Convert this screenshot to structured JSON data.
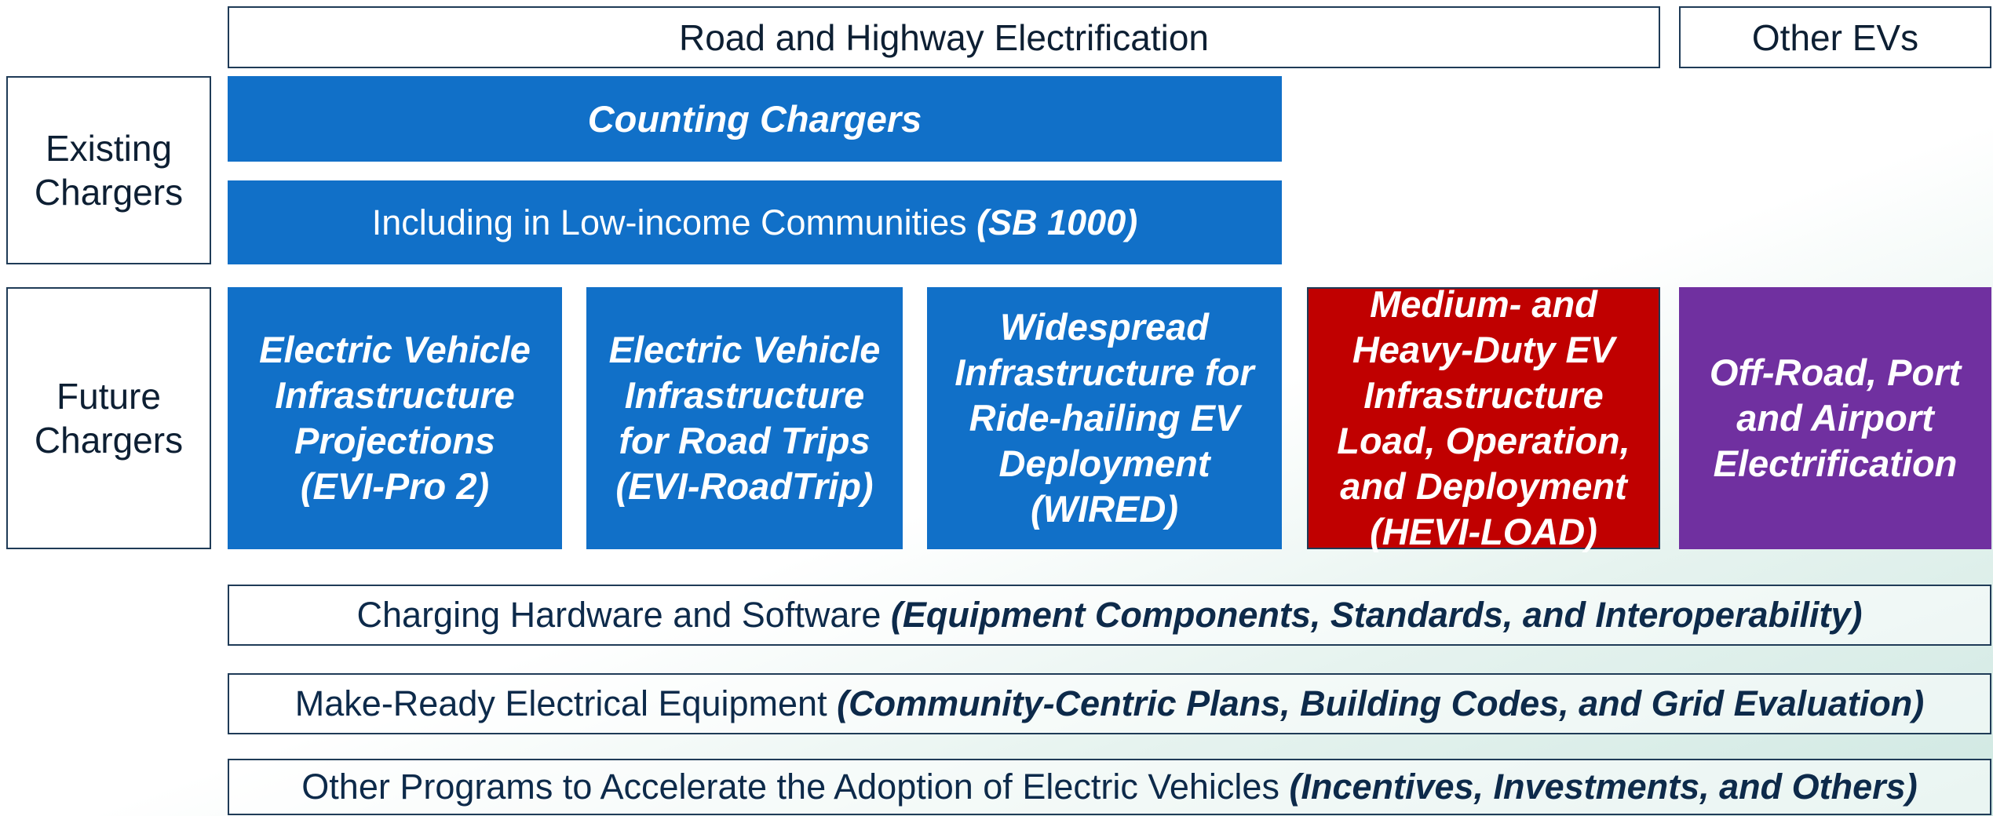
{
  "header": {
    "left": "Road and Highway Electrification",
    "right": "Other EVs"
  },
  "rows": {
    "existing": {
      "label": [
        "Existing",
        "Chargers"
      ]
    },
    "future": {
      "label": [
        "Future",
        "Chargers"
      ]
    }
  },
  "existing_boxes": {
    "counting": "Counting Chargers",
    "low_income": {
      "text": "Including in Low-income Communities",
      "emphasis": "(SB 1000)"
    }
  },
  "future_boxes": [
    {
      "lines": [
        "Electric Vehicle",
        "Infrastructure",
        "Projections",
        "(EVI-Pro 2)"
      ]
    },
    {
      "lines": [
        "Electric Vehicle",
        "Infrastructure",
        "for Road Trips",
        "(EVI-RoadTrip)"
      ]
    },
    {
      "lines": [
        "Widespread",
        "Infrastructure for",
        "Ride-hailing EV",
        "Deployment",
        "(WIRED)"
      ]
    },
    {
      "lines": [
        "Medium- and",
        "Heavy-Duty EV",
        "Infrastructure",
        "Load, Operation,",
        "and Deployment",
        "(HEVI-LOAD)"
      ]
    },
    {
      "lines": [
        "Off-Road, Port",
        "and Airport",
        "Electrification"
      ]
    }
  ],
  "bands": [
    {
      "text": "Charging Hardware and Software",
      "emphasis": "(Equipment Components, Standards, and Interoperability)"
    },
    {
      "text": "Make-Ready Electrical Equipment",
      "emphasis": "(Community-Centric Plans, Building Codes, and Grid Evaluation)"
    },
    {
      "text": "Other Programs to Accelerate the Adoption of Electric Vehicles",
      "emphasis": "(Incentives, Investments, and Others)"
    }
  ]
}
